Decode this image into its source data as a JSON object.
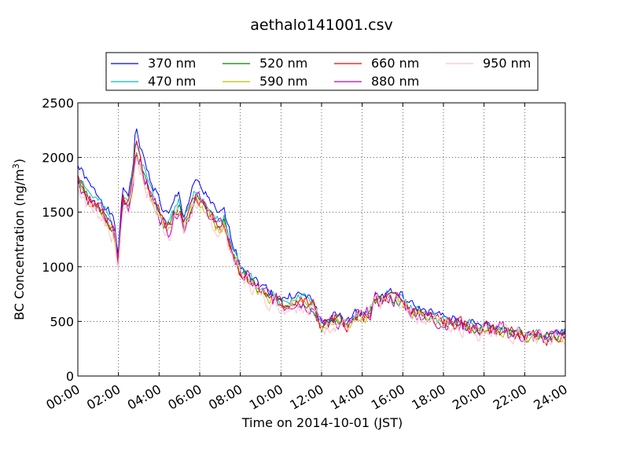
{
  "chart_data": {
    "type": "line",
    "title": "aethalo141001.csv",
    "xlabel": "Time on 2014-10-01 (JST)",
    "ylabel": "BC Concentration (ng/m",
    "ylabel_sup": "3",
    "ylabel_end": ")",
    "xlim": [
      0,
      24
    ],
    "ylim": [
      0,
      2500
    ],
    "grid": true,
    "legend_position": "top-center",
    "x_ticks": [
      0,
      2,
      4,
      6,
      8,
      10,
      12,
      14,
      16,
      18,
      20,
      22,
      24
    ],
    "x_tick_labels": [
      "00:00",
      "02:00",
      "04:00",
      "06:00",
      "08:00",
      "10:00",
      "12:00",
      "14:00",
      "16:00",
      "18:00",
      "20:00",
      "22:00",
      "24:00"
    ],
    "y_ticks": [
      0,
      500,
      1000,
      1500,
      2000,
      2500
    ],
    "y_tick_labels": [
      "0",
      "500",
      "1000",
      "1500",
      "2000",
      "2500"
    ],
    "baseline": {
      "x": [
        0,
        0.3,
        0.6,
        0.9,
        1.2,
        1.5,
        1.8,
        2.0,
        2.2,
        2.5,
        2.7,
        2.85,
        3.0,
        3.3,
        3.6,
        3.9,
        4.2,
        4.5,
        4.8,
        5.0,
        5.2,
        5.5,
        5.8,
        6.0,
        6.2,
        6.5,
        6.8,
        7.0,
        7.2,
        7.4,
        7.6,
        7.8,
        8.0,
        8.3,
        8.6,
        8.9,
        9.2,
        9.5,
        9.8,
        10.1,
        10.4,
        10.7,
        11.0,
        11.3,
        11.6,
        12.0,
        12.3,
        12.6,
        12.9,
        13.2,
        13.5,
        13.8,
        14.1,
        14.4,
        14.7,
        15.0,
        15.3,
        15.6,
        15.9,
        16.1,
        16.4,
        16.7,
        17.0,
        17.3,
        17.6,
        17.9,
        18.2,
        18.5,
        18.8,
        19.1,
        19.4,
        19.7,
        20.0,
        20.3,
        20.6,
        20.9,
        21.2,
        21.5,
        21.8,
        22.1,
        22.4,
        22.7,
        23.0,
        23.3,
        23.6,
        24.0
      ],
      "y": [
        1780,
        1700,
        1600,
        1550,
        1500,
        1400,
        1300,
        1000,
        1600,
        1550,
        1750,
        2100,
        2000,
        1800,
        1650,
        1550,
        1400,
        1350,
        1500,
        1550,
        1350,
        1500,
        1650,
        1600,
        1550,
        1500,
        1380,
        1350,
        1400,
        1250,
        1150,
        1050,
        950,
        900,
        850,
        780,
        750,
        720,
        680,
        650,
        670,
        700,
        680,
        660,
        640,
        450,
        480,
        520,
        500,
        470,
        480,
        550,
        520,
        580,
        700,
        680,
        720,
        700,
        680,
        650,
        600,
        580,
        560,
        540,
        520,
        500,
        490,
        480,
        470,
        460,
        450,
        420,
        440,
        430,
        410,
        420,
        400,
        380,
        390,
        360,
        350,
        360,
        340,
        350,
        360,
        380
      ]
    },
    "series": [
      {
        "name": "370 nm",
        "color": "#0000ff",
        "offset": 120,
        "noise": 50,
        "seed": 1
      },
      {
        "name": "470 nm",
        "color": "#00bfbf",
        "offset": 60,
        "noise": 50,
        "seed": 2
      },
      {
        "name": "520 nm",
        "color": "#008000",
        "offset": 0,
        "noise": 50,
        "seed": 3
      },
      {
        "name": "590 nm",
        "color": "#bfbf00",
        "offset": -20,
        "noise": 55,
        "seed": 4
      },
      {
        "name": "660 nm",
        "color": "#ff0000",
        "offset": 10,
        "noise": 70,
        "seed": 5
      },
      {
        "name": "880 nm",
        "color": "#bf00bf",
        "offset": 0,
        "noise": 85,
        "seed": 6
      },
      {
        "name": "950 nm",
        "color": "#ffc0cb",
        "offset": -40,
        "noise": 95,
        "seed": 7
      }
    ]
  }
}
